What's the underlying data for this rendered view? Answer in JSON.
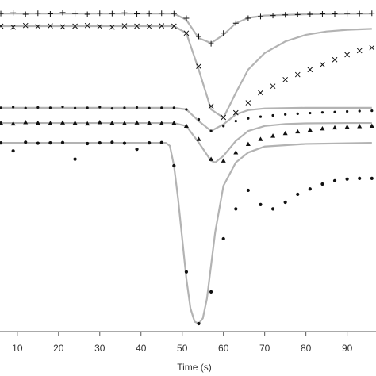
{
  "chart_data": {
    "type": "scatter",
    "xlabel": "Time (s)",
    "xlim": [
      5.8,
      97
    ],
    "xticks": [
      10,
      20,
      30,
      40,
      50,
      60,
      70,
      80,
      90
    ],
    "ylim": [
      0,
      100
    ],
    "series": [
      {
        "style": "line",
        "color": "#b3b3b3",
        "x": [
          6,
          48,
          51,
          54,
          57,
          60,
          63,
          66,
          70,
          80,
          96
        ],
        "values": [
          95.9,
          95.9,
          94,
          88.5,
          87,
          89.5,
          93,
          94.6,
          95.3,
          95.7,
          95.9
        ]
      },
      {
        "style": "line",
        "color": "#b3b3b3",
        "x": [
          6,
          48,
          51,
          54,
          57,
          60,
          63,
          66,
          70,
          75,
          80,
          85,
          90,
          96
        ],
        "values": [
          92.1,
          92.1,
          90,
          79,
          67,
          64.5,
          72,
          79,
          84,
          87.5,
          89.5,
          90.5,
          91,
          91.3
        ]
      },
      {
        "style": "line",
        "color": "#b3b3b3",
        "x": [
          6,
          48,
          51,
          54,
          57,
          60,
          63,
          66,
          70,
          80,
          96
        ],
        "values": [
          67.5,
          67.5,
          67,
          63.5,
          60.5,
          62.5,
          65.5,
          66.8,
          67.3,
          67.5,
          67.5
        ]
      },
      {
        "style": "line",
        "color": "#b3b3b3",
        "x": [
          6,
          48,
          51,
          54,
          57,
          58,
          60,
          63,
          66,
          70,
          75,
          80,
          90,
          96
        ],
        "values": [
          62.9,
          62.9,
          62,
          57,
          51.5,
          51,
          53,
          57.5,
          60.5,
          62,
          62.6,
          62.8,
          62.9,
          62.9
        ]
      },
      {
        "style": "line",
        "color": "#b3b3b3",
        "x": [
          6,
          46,
          47,
          48,
          49,
          50,
          51,
          52,
          53,
          54,
          55,
          56,
          57,
          58,
          60,
          63,
          66,
          70,
          80,
          96
        ],
        "values": [
          56.9,
          56.9,
          56,
          50,
          40,
          28,
          16,
          7,
          3,
          2.4,
          4,
          10,
          20,
          30,
          44,
          51,
          54,
          55.8,
          56.6,
          56.9
        ]
      },
      {
        "marker": "+",
        "color": "#111111",
        "x": [
          6,
          9,
          12,
          15,
          18,
          21,
          24,
          27,
          30,
          33,
          36,
          39,
          42,
          45,
          48,
          51,
          54,
          57,
          60,
          63,
          66,
          69,
          72,
          75,
          78,
          81,
          84,
          87,
          90,
          93,
          96
        ],
        "values": [
          95.9,
          96.1,
          95.7,
          96,
          95.8,
          96.2,
          95.9,
          95.7,
          96,
          95.9,
          96.1,
          95.8,
          95.9,
          96,
          95.9,
          94.5,
          89,
          86.8,
          90,
          93,
          94.5,
          95,
          95.3,
          95.5,
          95.6,
          95.7,
          95.8,
          95.8,
          95.9,
          95.9,
          96
        ]
      },
      {
        "marker": "x",
        "color": "#111111",
        "x": [
          6,
          9,
          12,
          15,
          18,
          21,
          24,
          27,
          30,
          33,
          36,
          39,
          42,
          45,
          48,
          51,
          54,
          57,
          60,
          63,
          66,
          69,
          72,
          75,
          78,
          81,
          84,
          87,
          90,
          93,
          96
        ],
        "values": [
          92.1,
          91.8,
          92.3,
          92,
          92.2,
          91.9,
          92.1,
          92.3,
          92,
          91.8,
          92.2,
          92.1,
          92,
          92.2,
          92.1,
          90,
          80,
          68,
          64.6,
          66,
          69,
          72,
          74,
          76,
          77.5,
          79,
          80.5,
          82,
          83.5,
          84.7,
          85.6
        ]
      },
      {
        "marker": "dot-small",
        "color": "#111111",
        "x": [
          6,
          9,
          12,
          15,
          18,
          21,
          24,
          27,
          30,
          33,
          36,
          39,
          42,
          45,
          48,
          51,
          54,
          57,
          60,
          63,
          66,
          69,
          72,
          75,
          78,
          81,
          84,
          87,
          90,
          93,
          96
        ],
        "values": [
          67.5,
          67.7,
          67.4,
          67.6,
          67.5,
          67.8,
          67.4,
          67.5,
          67.7,
          67.3,
          67.5,
          67.6,
          67.4,
          67.5,
          67.5,
          67,
          64,
          60.5,
          62,
          63.5,
          64.3,
          64.8,
          65.2,
          65.5,
          65.7,
          65.9,
          66.1,
          66.2,
          66.4,
          66.5,
          66.6
        ]
      },
      {
        "marker": "triangle",
        "color": "#111111",
        "x": [
          6,
          9,
          12,
          15,
          18,
          21,
          24,
          27,
          30,
          33,
          36,
          39,
          42,
          45,
          48,
          51,
          54,
          57,
          60,
          63,
          66,
          69,
          72,
          75,
          78,
          81,
          84,
          87,
          90,
          93,
          96
        ],
        "values": [
          62.9,
          62.7,
          63.1,
          62.9,
          62.8,
          63,
          62.9,
          62.7,
          63.1,
          62.9,
          62.8,
          63,
          62.9,
          62.8,
          62.9,
          62,
          58,
          52,
          51.5,
          54,
          56.5,
          58,
          59,
          59.8,
          60.3,
          60.8,
          61.2,
          61.5,
          61.7,
          61.9,
          62
        ]
      },
      {
        "marker": "dot",
        "color": "#111111",
        "x": [
          6,
          9,
          12,
          15,
          18,
          21,
          24,
          27,
          30,
          33,
          36,
          39,
          42,
          45,
          48,
          51,
          54,
          57,
          60,
          63,
          66,
          69,
          72,
          75,
          78,
          81,
          84,
          87,
          90,
          93,
          96
        ],
        "values": [
          56.9,
          54.5,
          57.1,
          56.8,
          56.9,
          57,
          52,
          56.7,
          56.9,
          57.1,
          56.8,
          55,
          56.9,
          57,
          50,
          18,
          2.4,
          12,
          28,
          37,
          42.6,
          38.3,
          37,
          39,
          41.4,
          43,
          44.5,
          45.5,
          46,
          46.2,
          46.2
        ]
      }
    ]
  }
}
